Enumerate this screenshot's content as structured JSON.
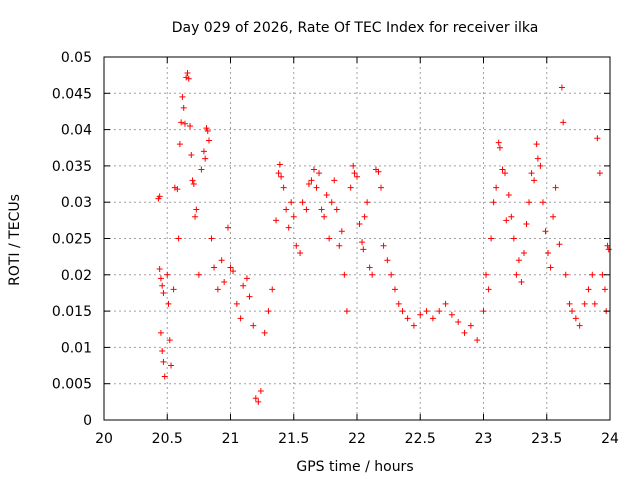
{
  "chart_data": {
    "type": "scatter",
    "title": "Day 029 of 2026, Rate Of TEC Index for receiver ilka",
    "xlabel": "GPS time / hours",
    "ylabel": "ROTI / TECUs",
    "xlim": [
      20,
      24
    ],
    "ylim": [
      0,
      0.05
    ],
    "xticks": [
      "20",
      "20.5",
      "21",
      "21.5",
      "22",
      "22.5",
      "23",
      "23.5",
      "24"
    ],
    "yticks": [
      "0",
      "0.005",
      "0.01",
      "0.015",
      "0.02",
      "0.025",
      "0.03",
      "0.035",
      "0.04",
      "0.045",
      "0.05"
    ],
    "grid": true,
    "marker": "+",
    "color": "#ff0000",
    "series": [
      {
        "name": "ROTI",
        "points": [
          [
            20.43,
            0.0305
          ],
          [
            20.44,
            0.0308
          ],
          [
            20.44,
            0.0208
          ],
          [
            20.45,
            0.0195
          ],
          [
            20.46,
            0.0185
          ],
          [
            20.47,
            0.0175
          ],
          [
            20.45,
            0.012
          ],
          [
            20.46,
            0.0095
          ],
          [
            20.47,
            0.008
          ],
          [
            20.48,
            0.006
          ],
          [
            20.5,
            0.02
          ],
          [
            20.51,
            0.016
          ],
          [
            20.52,
            0.011
          ],
          [
            20.53,
            0.0075
          ],
          [
            20.55,
            0.018
          ],
          [
            20.56,
            0.032
          ],
          [
            20.58,
            0.0318
          ],
          [
            20.59,
            0.025
          ],
          [
            20.6,
            0.038
          ],
          [
            20.61,
            0.041
          ],
          [
            20.62,
            0.0445
          ],
          [
            20.63,
            0.043
          ],
          [
            20.64,
            0.0408
          ],
          [
            20.65,
            0.0472
          ],
          [
            20.66,
            0.0478
          ],
          [
            20.67,
            0.047
          ],
          [
            20.68,
            0.0405
          ],
          [
            20.69,
            0.0365
          ],
          [
            20.7,
            0.033
          ],
          [
            20.71,
            0.0325
          ],
          [
            20.72,
            0.028
          ],
          [
            20.73,
            0.029
          ],
          [
            20.75,
            0.02
          ],
          [
            20.77,
            0.0345
          ],
          [
            20.79,
            0.037
          ],
          [
            20.8,
            0.036
          ],
          [
            20.81,
            0.0402
          ],
          [
            20.82,
            0.0398
          ],
          [
            20.83,
            0.0385
          ],
          [
            20.85,
            0.025
          ],
          [
            20.87,
            0.021
          ],
          [
            20.9,
            0.018
          ],
          [
            20.93,
            0.022
          ],
          [
            20.95,
            0.019
          ],
          [
            20.98,
            0.0265
          ],
          [
            21.0,
            0.021
          ],
          [
            21.02,
            0.0205
          ],
          [
            21.05,
            0.016
          ],
          [
            21.08,
            0.014
          ],
          [
            21.1,
            0.0185
          ],
          [
            21.13,
            0.0195
          ],
          [
            21.15,
            0.017
          ],
          [
            21.18,
            0.013
          ],
          [
            21.2,
            0.003
          ],
          [
            21.22,
            0.0025
          ],
          [
            21.24,
            0.004
          ],
          [
            21.27,
            0.012
          ],
          [
            21.3,
            0.015
          ],
          [
            21.33,
            0.018
          ],
          [
            21.36,
            0.0275
          ],
          [
            21.38,
            0.034
          ],
          [
            21.39,
            0.0352
          ],
          [
            21.4,
            0.0335
          ],
          [
            21.42,
            0.032
          ],
          [
            21.44,
            0.029
          ],
          [
            21.46,
            0.0265
          ],
          [
            21.48,
            0.03
          ],
          [
            21.5,
            0.028
          ],
          [
            21.52,
            0.024
          ],
          [
            21.55,
            0.023
          ],
          [
            21.57,
            0.03
          ],
          [
            21.6,
            0.029
          ],
          [
            21.62,
            0.0325
          ],
          [
            21.64,
            0.033
          ],
          [
            21.66,
            0.0345
          ],
          [
            21.68,
            0.032
          ],
          [
            21.7,
            0.034
          ],
          [
            21.72,
            0.029
          ],
          [
            21.74,
            0.028
          ],
          [
            21.76,
            0.031
          ],
          [
            21.78,
            0.025
          ],
          [
            21.8,
            0.03
          ],
          [
            21.82,
            0.033
          ],
          [
            21.84,
            0.029
          ],
          [
            21.86,
            0.024
          ],
          [
            21.88,
            0.026
          ],
          [
            21.9,
            0.02
          ],
          [
            21.92,
            0.015
          ],
          [
            21.95,
            0.032
          ],
          [
            21.97,
            0.035
          ],
          [
            21.98,
            0.034
          ],
          [
            22.0,
            0.0335
          ],
          [
            22.02,
            0.027
          ],
          [
            22.04,
            0.0245
          ],
          [
            22.05,
            0.0235
          ],
          [
            22.06,
            0.028
          ],
          [
            22.08,
            0.03
          ],
          [
            22.1,
            0.021
          ],
          [
            22.12,
            0.02
          ],
          [
            22.15,
            0.0345
          ],
          [
            22.17,
            0.0342
          ],
          [
            22.19,
            0.032
          ],
          [
            22.21,
            0.024
          ],
          [
            22.24,
            0.022
          ],
          [
            22.27,
            0.02
          ],
          [
            22.3,
            0.018
          ],
          [
            22.33,
            0.016
          ],
          [
            22.36,
            0.015
          ],
          [
            22.4,
            0.014
          ],
          [
            22.45,
            0.013
          ],
          [
            22.5,
            0.0145
          ],
          [
            22.55,
            0.015
          ],
          [
            22.6,
            0.014
          ],
          [
            22.65,
            0.015
          ],
          [
            22.7,
            0.016
          ],
          [
            22.75,
            0.0145
          ],
          [
            22.8,
            0.0135
          ],
          [
            22.85,
            0.012
          ],
          [
            22.9,
            0.013
          ],
          [
            22.95,
            0.011
          ],
          [
            23.0,
            0.015
          ],
          [
            23.02,
            0.02
          ],
          [
            23.04,
            0.018
          ],
          [
            23.06,
            0.025
          ],
          [
            23.08,
            0.03
          ],
          [
            23.1,
            0.032
          ],
          [
            23.12,
            0.0382
          ],
          [
            23.13,
            0.0375
          ],
          [
            23.15,
            0.0345
          ],
          [
            23.17,
            0.034
          ],
          [
            23.18,
            0.0275
          ],
          [
            23.2,
            0.031
          ],
          [
            23.22,
            0.028
          ],
          [
            23.24,
            0.025
          ],
          [
            23.26,
            0.02
          ],
          [
            23.28,
            0.022
          ],
          [
            23.3,
            0.019
          ],
          [
            23.32,
            0.023
          ],
          [
            23.34,
            0.027
          ],
          [
            23.36,
            0.03
          ],
          [
            23.38,
            0.034
          ],
          [
            23.4,
            0.033
          ],
          [
            23.42,
            0.038
          ],
          [
            23.43,
            0.036
          ],
          [
            23.45,
            0.035
          ],
          [
            23.47,
            0.03
          ],
          [
            23.49,
            0.026
          ],
          [
            23.51,
            0.023
          ],
          [
            23.53,
            0.021
          ],
          [
            23.55,
            0.028
          ],
          [
            23.57,
            0.032
          ],
          [
            23.6,
            0.0242
          ],
          [
            23.62,
            0.0458
          ],
          [
            23.63,
            0.041
          ],
          [
            23.65,
            0.02
          ],
          [
            23.68,
            0.016
          ],
          [
            23.7,
            0.015
          ],
          [
            23.73,
            0.014
          ],
          [
            23.76,
            0.013
          ],
          [
            23.8,
            0.016
          ],
          [
            23.83,
            0.018
          ],
          [
            23.86,
            0.02
          ],
          [
            23.88,
            0.016
          ],
          [
            23.9,
            0.0388
          ],
          [
            23.92,
            0.034
          ],
          [
            23.94,
            0.02
          ],
          [
            23.96,
            0.018
          ],
          [
            23.98,
            0.024
          ],
          [
            23.99,
            0.0235
          ],
          [
            23.97,
            0.015
          ]
        ]
      }
    ]
  }
}
